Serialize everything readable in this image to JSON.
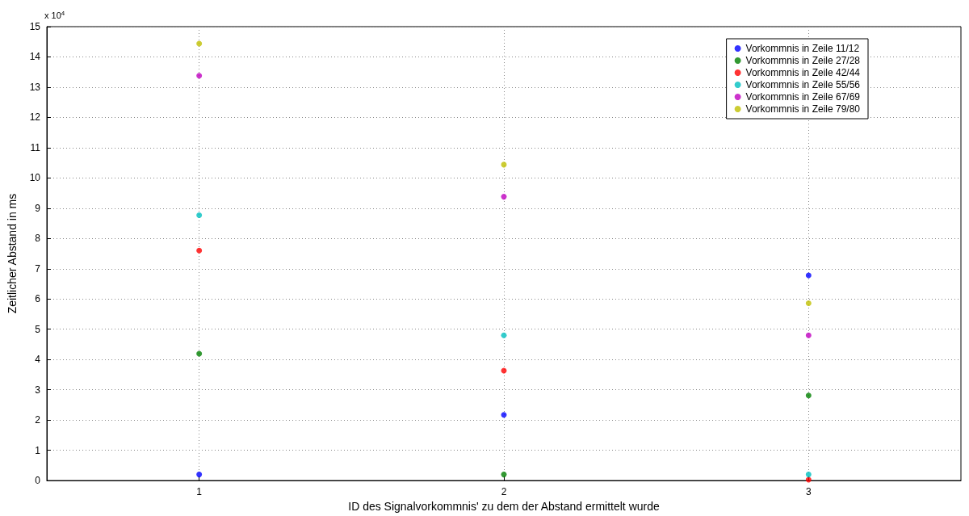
{
  "chart_data": {
    "type": "scatter",
    "xlabel": "ID des Signalvorkommnis' zu dem der Abstand ermittelt wurde",
    "ylabel": "Zeitlicher Abstand in ms",
    "annotations": [
      "x 10$^{4}$"
    ],
    "x": [
      1,
      2,
      3
    ],
    "xlim": [
      0.5,
      3.5
    ],
    "xticks": [
      1,
      2,
      3
    ],
    "ylim": [
      0,
      15
    ],
    "yticks": [
      0,
      1,
      2,
      3,
      4,
      5,
      6,
      7,
      8,
      9,
      10,
      11,
      12,
      13,
      14,
      15
    ],
    "grid": true,
    "legend": "top right",
    "marker": "circle",
    "series": [
      {
        "name": "Vorkommnis in Zeile 11/12",
        "color": "#0000ff",
        "values": [
          0.2,
          2.17,
          6.78
        ]
      },
      {
        "name": "Vorkommnis in Zeile 27/28",
        "color": "#008000",
        "values": [
          4.19,
          0.2,
          2.81
        ]
      },
      {
        "name": "Vorkommnis in Zeile 42/44",
        "color": "#ff0000",
        "values": [
          7.6,
          3.63,
          0.03
        ]
      },
      {
        "name": "Vorkommnis in Zeile 55/56",
        "color": "#00bfbf",
        "values": [
          8.77,
          4.8,
          0.2
        ]
      },
      {
        "name": "Vorkommnis in Zeile 67/69",
        "color": "#bf00bf",
        "values": [
          13.38,
          9.38,
          4.8
        ]
      },
      {
        "name": "Vorkommnis in Zeile 79/80",
        "color": "#bfbf00",
        "values": [
          14.44,
          10.44,
          5.86
        ]
      }
    ]
  }
}
